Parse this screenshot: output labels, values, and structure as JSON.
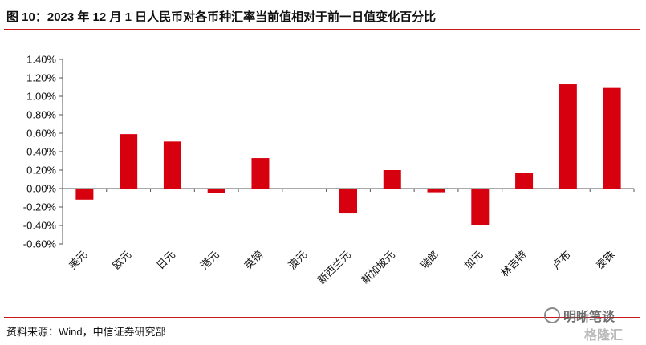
{
  "header": {
    "title": "图 10：2023 年 12 月 1 日人民币对各币种汇率当前值相对于前一日值变化百分比"
  },
  "footer": {
    "source": "资料来源：Wind，中信证券研究部"
  },
  "watermark": {
    "text": "明晰笔谈",
    "text2": "格隆汇"
  },
  "chart_data": {
    "type": "bar",
    "categories": [
      "美元",
      "欧元",
      "日元",
      "港元",
      "英镑",
      "澳元",
      "新西兰元",
      "新加坡元",
      "瑞郎",
      "加元",
      "林吉特",
      "卢布",
      "泰铢"
    ],
    "values": [
      -0.12,
      0.59,
      0.51,
      -0.05,
      0.33,
      0.0,
      -0.27,
      0.2,
      -0.04,
      -0.4,
      0.17,
      1.13,
      1.09
    ],
    "yticks": [
      "1.40%",
      "1.20%",
      "1.00%",
      "0.80%",
      "0.60%",
      "0.40%",
      "0.20%",
      "0.00%",
      "-0.20%",
      "-0.40%",
      "-0.60%"
    ],
    "ytick_values": [
      1.4,
      1.2,
      1.0,
      0.8,
      0.6,
      0.4,
      0.2,
      0.0,
      -0.2,
      -0.4,
      -0.6
    ],
    "ylim": [
      -0.6,
      1.4
    ],
    "bar_color": "#d7000f",
    "grid": false
  }
}
